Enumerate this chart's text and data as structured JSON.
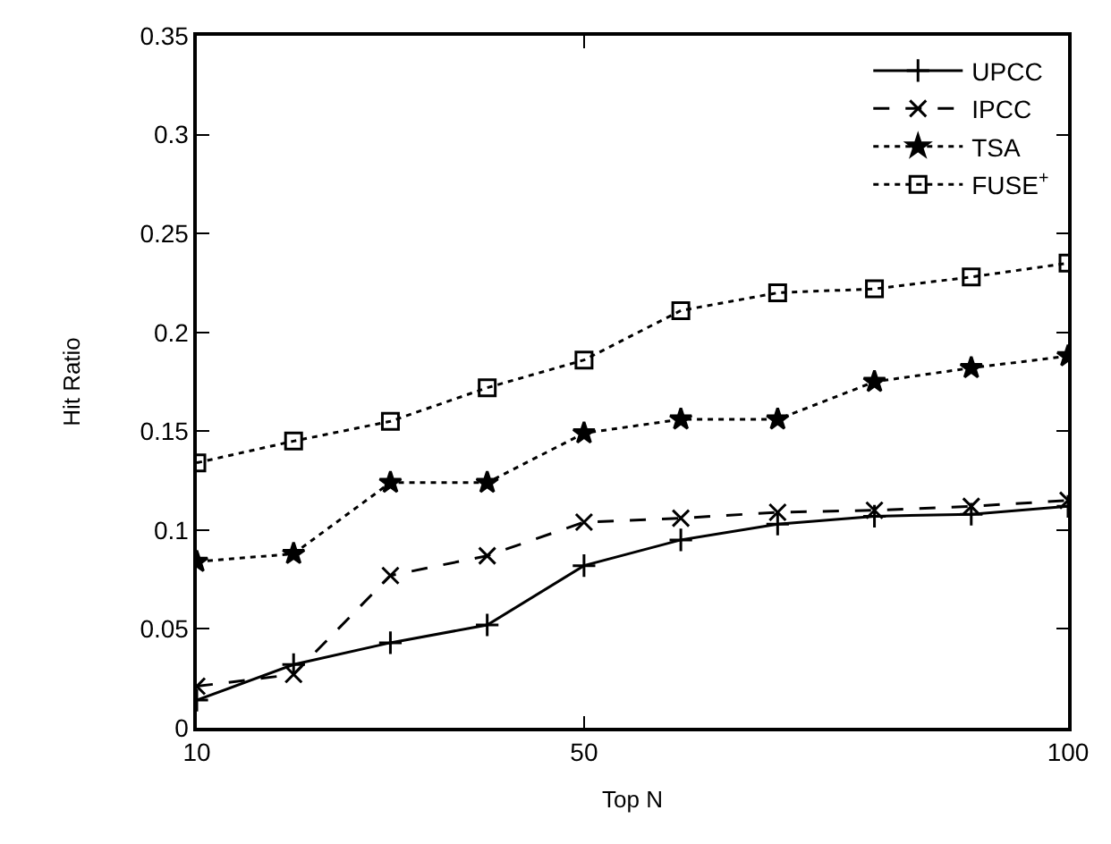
{
  "chart_data": {
    "type": "line",
    "xlabel": "Top N",
    "ylabel": "Hit Ratio",
    "x": [
      10,
      20,
      30,
      40,
      50,
      60,
      70,
      80,
      90,
      100
    ],
    "series": [
      {
        "name": "UPCC",
        "color": "#000000",
        "marker": "cross",
        "line_style": "solid",
        "values": [
          0.014,
          0.032,
          0.043,
          0.052,
          0.082,
          0.095,
          0.103,
          0.107,
          0.108,
          0.112
        ]
      },
      {
        "name": "IPCC",
        "color": "#000000",
        "marker": "x",
        "line_style": "dashed",
        "values": [
          0.021,
          0.027,
          0.077,
          0.087,
          0.104,
          0.106,
          0.109,
          0.11,
          0.112,
          0.115
        ]
      },
      {
        "name": "TSA",
        "color": "#000000",
        "marker": "star",
        "line_style": "dotted",
        "values": [
          0.084,
          0.088,
          0.124,
          0.124,
          0.149,
          0.156,
          0.156,
          0.175,
          0.182,
          0.188
        ]
      },
      {
        "name": "FUSE$^{+}$",
        "color": "#000000",
        "marker": "square",
        "line_style": "dotted",
        "values": [
          0.134,
          0.145,
          0.155,
          0.172,
          0.186,
          0.211,
          0.22,
          0.222,
          0.228,
          0.235
        ]
      }
    ],
    "xlim": [
      10,
      100
    ],
    "xticks": [
      10,
      50,
      100
    ],
    "ylim": [
      0,
      0.35
    ],
    "yticks": [
      0,
      0.05,
      0.1,
      0.15,
      0.2,
      0.25,
      0.3,
      0.35
    ],
    "grid": false,
    "legend": "top right"
  }
}
